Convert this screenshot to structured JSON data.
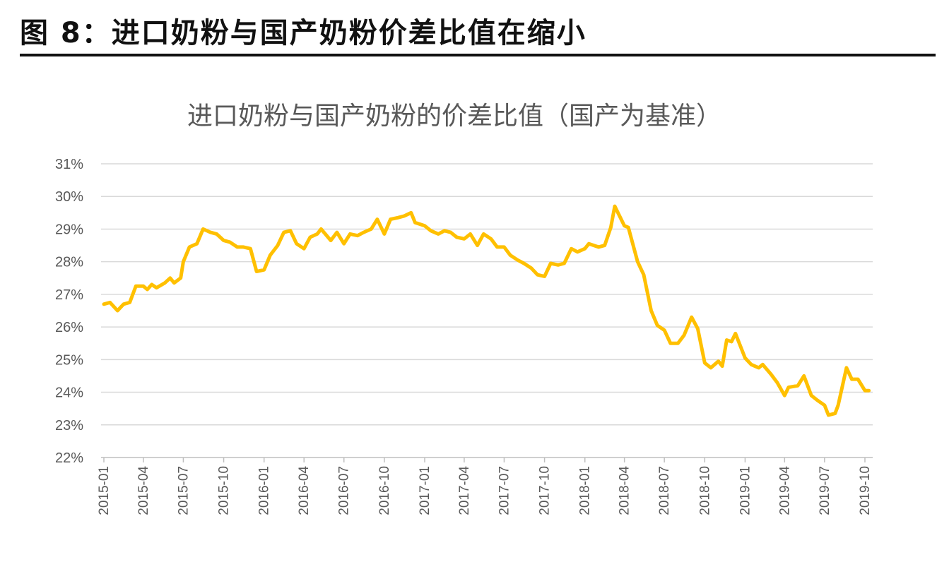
{
  "figure_title": "图 8：进口奶粉与国产奶粉价差比值在缩小",
  "chart_data": {
    "type": "line",
    "title": "进口奶粉与国产奶粉的价差比值（国产为基准）",
    "xlabel": "",
    "ylabel": "",
    "ylim": [
      22,
      31
    ],
    "y_ticks": [
      "22%",
      "23%",
      "24%",
      "25%",
      "26%",
      "27%",
      "28%",
      "29%",
      "30%",
      "31%"
    ],
    "x_ticks": [
      "2015-01",
      "2015-04",
      "2015-07",
      "2015-10",
      "2016-01",
      "2016-04",
      "2016-07",
      "2016-10",
      "2017-01",
      "2017-04",
      "2017-07",
      "2017-10",
      "2018-01",
      "2018-04",
      "2018-07",
      "2018-10",
      "2019-01",
      "2019-04",
      "2019-07",
      "2019-10"
    ],
    "grid": true,
    "series": [
      {
        "color": "#FFC000",
        "points": [
          [
            "2015-01",
            26.7
          ],
          [
            "2015-01-15",
            26.75
          ],
          [
            "2015-02",
            26.5
          ],
          [
            "2015-02-15",
            26.7
          ],
          [
            "2015-03",
            26.75
          ],
          [
            "2015-03-15",
            27.25
          ],
          [
            "2015-04",
            27.25
          ],
          [
            "2015-04-10",
            27.15
          ],
          [
            "2015-04-20",
            27.3
          ],
          [
            "2015-05",
            27.2
          ],
          [
            "2015-05-20",
            27.35
          ],
          [
            "2015-06",
            27.5
          ],
          [
            "2015-06-10",
            27.35
          ],
          [
            "2015-06-25",
            27.5
          ],
          [
            "2015-07",
            28.0
          ],
          [
            "2015-07-15",
            28.45
          ],
          [
            "2015-08",
            28.55
          ],
          [
            "2015-08-15",
            29.0
          ],
          [
            "2015-09",
            28.9
          ],
          [
            "2015-09-15",
            28.85
          ],
          [
            "2015-10",
            28.65
          ],
          [
            "2015-10-15",
            28.6
          ],
          [
            "2015-11",
            28.45
          ],
          [
            "2015-11-15",
            28.45
          ],
          [
            "2015-12",
            28.4
          ],
          [
            "2015-12-15",
            27.7
          ],
          [
            "2016-01",
            27.75
          ],
          [
            "2016-01-15",
            28.2
          ],
          [
            "2016-02",
            28.5
          ],
          [
            "2016-02-15",
            28.9
          ],
          [
            "2016-03",
            28.95
          ],
          [
            "2016-03-15",
            28.55
          ],
          [
            "2016-04",
            28.4
          ],
          [
            "2016-04-15",
            28.75
          ],
          [
            "2016-05",
            28.85
          ],
          [
            "2016-05-10",
            29.0
          ],
          [
            "2016-06",
            28.65
          ],
          [
            "2016-06-15",
            28.9
          ],
          [
            "2016-07",
            28.55
          ],
          [
            "2016-07-15",
            28.85
          ],
          [
            "2016-08",
            28.8
          ],
          [
            "2016-08-15",
            28.9
          ],
          [
            "2016-09",
            29.0
          ],
          [
            "2016-09-15",
            29.3
          ],
          [
            "2016-10",
            28.85
          ],
          [
            "2016-10-15",
            29.3
          ],
          [
            "2016-11",
            29.35
          ],
          [
            "2016-11-15",
            29.4
          ],
          [
            "2016-12",
            29.5
          ],
          [
            "2016-12-10",
            29.2
          ],
          [
            "2017-01",
            29.1
          ],
          [
            "2017-01-15",
            28.95
          ],
          [
            "2017-02",
            28.85
          ],
          [
            "2017-02-15",
            28.95
          ],
          [
            "2017-03",
            28.9
          ],
          [
            "2017-03-15",
            28.75
          ],
          [
            "2017-04",
            28.7
          ],
          [
            "2017-04-15",
            28.85
          ],
          [
            "2017-05",
            28.5
          ],
          [
            "2017-05-15",
            28.85
          ],
          [
            "2017-06",
            28.7
          ],
          [
            "2017-06-15",
            28.45
          ],
          [
            "2017-07",
            28.45
          ],
          [
            "2017-07-15",
            28.2
          ],
          [
            "2017-08",
            28.05
          ],
          [
            "2017-08-15",
            27.95
          ],
          [
            "2017-09",
            27.8
          ],
          [
            "2017-09-15",
            27.6
          ],
          [
            "2017-10",
            27.55
          ],
          [
            "2017-10-15",
            27.95
          ],
          [
            "2017-11",
            27.9
          ],
          [
            "2017-11-15",
            27.95
          ],
          [
            "2017-12",
            28.4
          ],
          [
            "2017-12-15",
            28.3
          ],
          [
            "2018-01",
            28.4
          ],
          [
            "2018-01-10",
            28.55
          ],
          [
            "2018-02",
            28.45
          ],
          [
            "2018-02-15",
            28.5
          ],
          [
            "2018-03",
            29.05
          ],
          [
            "2018-03-10",
            29.7
          ],
          [
            "2018-04",
            29.1
          ],
          [
            "2018-04-10",
            29.05
          ],
          [
            "2018-05",
            28.0
          ],
          [
            "2018-05-15",
            27.6
          ],
          [
            "2018-06",
            26.5
          ],
          [
            "2018-06-15",
            26.05
          ],
          [
            "2018-07",
            25.9
          ],
          [
            "2018-07-15",
            25.5
          ],
          [
            "2018-08",
            25.5
          ],
          [
            "2018-08-15",
            25.75
          ],
          [
            "2018-09",
            26.3
          ],
          [
            "2018-09-15",
            25.95
          ],
          [
            "2018-10",
            24.9
          ],
          [
            "2018-10-15",
            24.75
          ],
          [
            "2018-11",
            24.95
          ],
          [
            "2018-11-10",
            24.8
          ],
          [
            "2018-11-20",
            25.6
          ],
          [
            "2018-12",
            25.55
          ],
          [
            "2018-12-10",
            25.8
          ],
          [
            "2019-01",
            25.05
          ],
          [
            "2019-01-15",
            24.85
          ],
          [
            "2019-02",
            24.75
          ],
          [
            "2019-02-10",
            24.85
          ],
          [
            "2019-03",
            24.55
          ],
          [
            "2019-03-15",
            24.3
          ],
          [
            "2019-04",
            23.9
          ],
          [
            "2019-04-10",
            24.15
          ],
          [
            "2019-05",
            24.2
          ],
          [
            "2019-05-15",
            24.5
          ],
          [
            "2019-06",
            23.9
          ],
          [
            "2019-06-15",
            23.75
          ],
          [
            "2019-07",
            23.6
          ],
          [
            "2019-07-10",
            23.3
          ],
          [
            "2019-07-25",
            23.35
          ],
          [
            "2019-08",
            23.6
          ],
          [
            "2019-08-20",
            24.75
          ],
          [
            "2019-09",
            24.4
          ],
          [
            "2019-09-15",
            24.4
          ],
          [
            "2019-10",
            24.05
          ],
          [
            "2019-10-10",
            24.05
          ]
        ]
      }
    ]
  }
}
